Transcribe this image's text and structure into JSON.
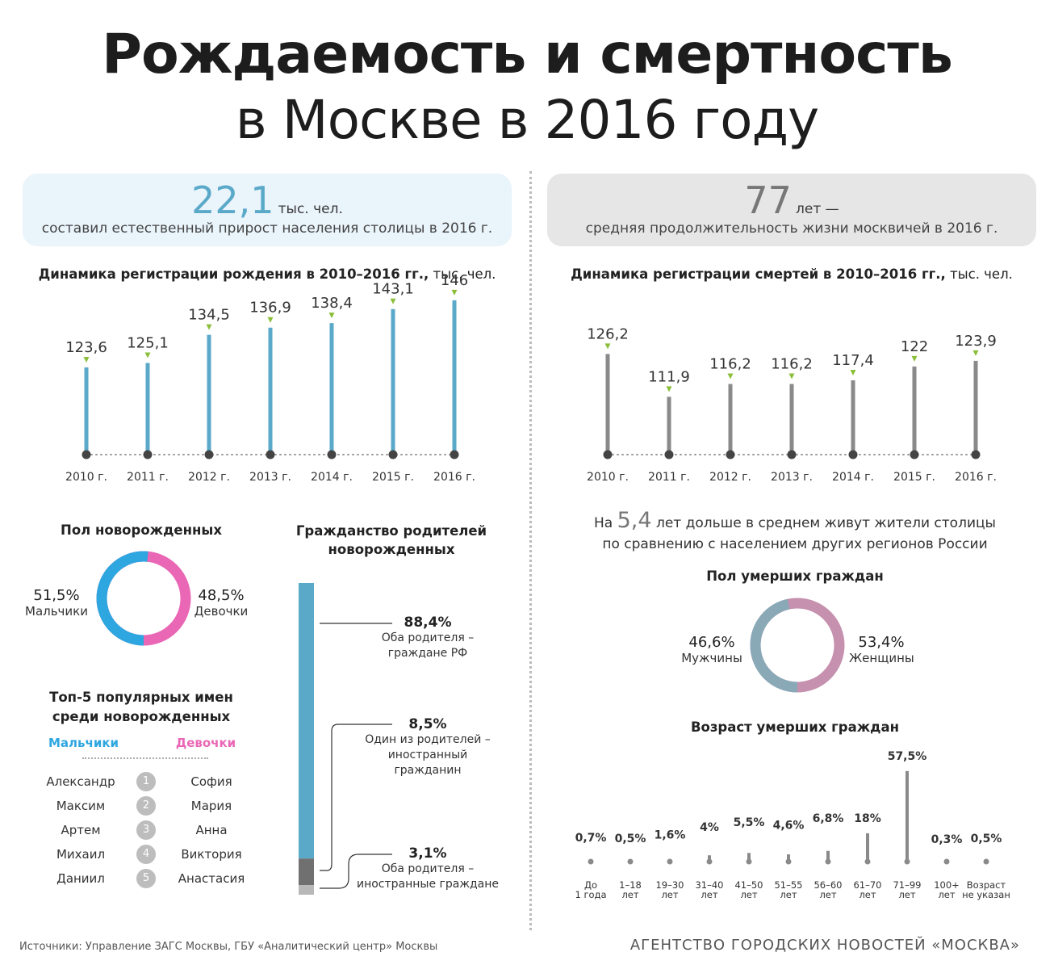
{
  "title": {
    "line1": "Рождаемость и смертность",
    "line2": "в Москве в 2016 году"
  },
  "growth": {
    "value": "22,1",
    "unit": "тыс. чел.",
    "desc": "составил естественный прирост населения столицы в 2016 г."
  },
  "life": {
    "value": "77",
    "unit": "лет —",
    "desc": "средняя продолжительность жизни москвичей в 2016 г."
  },
  "births": {
    "title_bold": "Динамика регистрации рождения в 2010–2016 гг.,",
    "title_unit": " тыс. чел."
  },
  "deaths": {
    "title_bold": "Динамика регистрации смертей в 2010–2016 гг.,",
    "title_unit": " тыс. чел."
  },
  "diff": {
    "prefix": "На",
    "value": "5,4",
    "line1_rest": "лет дольше в среднем живут жители столицы",
    "line2": "по сравнению с населением других регионов России"
  },
  "sex_newborn": {
    "title": "Пол новорожденных",
    "boys_pct": "51,5%",
    "boys_label": "Мальчики",
    "girls_pct": "48,5%",
    "girls_label": "Девочки"
  },
  "citizenship": {
    "title1": "Гражданство родителей",
    "title2": "новорожденных",
    "items": [
      {
        "pct": "88,4%",
        "l1": "Оба родителя –",
        "l2": "граждане РФ",
        "l3": ""
      },
      {
        "pct": "8,5%",
        "l1": "Один из родителей –",
        "l2": "иностранный",
        "l3": "гражданин"
      },
      {
        "pct": "3,1%",
        "l1": "Оба родителя –",
        "l2": "иностранные граждане",
        "l3": ""
      }
    ]
  },
  "names": {
    "title1": "Топ-5 популярных имен",
    "title2": "среди новорожденных",
    "boys_header": "Мальчики",
    "girls_header": "Девочки",
    "rows": [
      {
        "n": "1",
        "boy": "Александр",
        "girl": "София"
      },
      {
        "n": "2",
        "boy": "Максим",
        "girl": "Мария"
      },
      {
        "n": "3",
        "boy": "Артем",
        "girl": "Анна"
      },
      {
        "n": "4",
        "boy": "Михаил",
        "girl": "Виктория"
      },
      {
        "n": "5",
        "boy": "Даниил",
        "girl": "Анастасия"
      }
    ]
  },
  "sex_deceased": {
    "title": "Пол умерших граждан",
    "men_pct": "46,6%",
    "men_label": "Мужчины",
    "women_pct": "53,4%",
    "women_label": "Женщины"
  },
  "age_title": "Возраст умерших граждан",
  "source": "Источники: Управление ЗАГС Москвы, ГБУ «Аналитический центр» Москвы",
  "agency": "АГЕНТСТВО ГОРОДСКИХ НОВОСТЕЙ «МОСКВА»",
  "colors": {
    "blue": "#5aa9c9",
    "grey": "#8a8a8a",
    "boys": "#2ea6e0",
    "girls": "#e967b5",
    "men": "#89a9b7",
    "women": "#c591af"
  },
  "chart_data": [
    {
      "type": "bar",
      "title": "Динамика регистрации рождения в 2010–2016 гг., тыс. чел.",
      "categories": [
        "2010 г.",
        "2011 г.",
        "2012 г.",
        "2013 г.",
        "2014 г.",
        "2015 г.",
        "2016 г."
      ],
      "labels": [
        "123,6",
        "125,1",
        "134,5",
        "136,9",
        "138,4",
        "143,1",
        "146"
      ],
      "values": [
        123.6,
        125.1,
        134.5,
        136.9,
        138.4,
        143.1,
        146
      ]
    },
    {
      "type": "bar",
      "title": "Динамика регистрации смертей в 2010–2016 гг., тыс. чел.",
      "categories": [
        "2010 г.",
        "2011 г.",
        "2012 г.",
        "2013 г.",
        "2014 г.",
        "2015 г.",
        "2016 г."
      ],
      "labels": [
        "126,2",
        "111,9",
        "116,2",
        "116,2",
        "117,4",
        "122",
        "123,9"
      ],
      "values": [
        126.2,
        111.9,
        116.2,
        116.2,
        117.4,
        122,
        123.9
      ]
    },
    {
      "type": "pie",
      "title": "Пол новорожденных",
      "categories": [
        "Мальчики",
        "Девочки"
      ],
      "values": [
        51.5,
        48.5
      ]
    },
    {
      "type": "bar",
      "title": "Гражданство родителей новорожденных",
      "categories": [
        "Оба родителя – граждане РФ",
        "Один из родителей – иностранный гражданин",
        "Оба родителя – иностранные граждане"
      ],
      "values": [
        88.4,
        8.5,
        3.1
      ]
    },
    {
      "type": "pie",
      "title": "Пол умерших граждан",
      "categories": [
        "Мужчины",
        "Женщины"
      ],
      "values": [
        46.6,
        53.4
      ]
    },
    {
      "type": "bar",
      "title": "Возраст умерших граждан",
      "categories": [
        [
          "До",
          "1 года"
        ],
        [
          "1–18",
          "лет"
        ],
        [
          "19–30",
          "лет"
        ],
        [
          "31–40",
          "лет"
        ],
        [
          "41–50",
          "лет"
        ],
        [
          "51–55",
          "лет"
        ],
        [
          "56–60",
          "лет"
        ],
        [
          "61–70",
          "лет"
        ],
        [
          "71–99",
          "лет"
        ],
        [
          "100+",
          "лет"
        ],
        [
          "Возраст",
          "не указан"
        ]
      ],
      "labels": [
        "0,7%",
        "0,5%",
        "1,6%",
        "4%",
        "5,5%",
        "4,6%",
        "6,8%",
        "18%",
        "57,5%",
        "0,3%",
        "0,5%"
      ],
      "values": [
        0.7,
        0.5,
        1.6,
        4,
        5.5,
        4.6,
        6.8,
        18,
        57.5,
        0.3,
        0.5
      ]
    }
  ]
}
